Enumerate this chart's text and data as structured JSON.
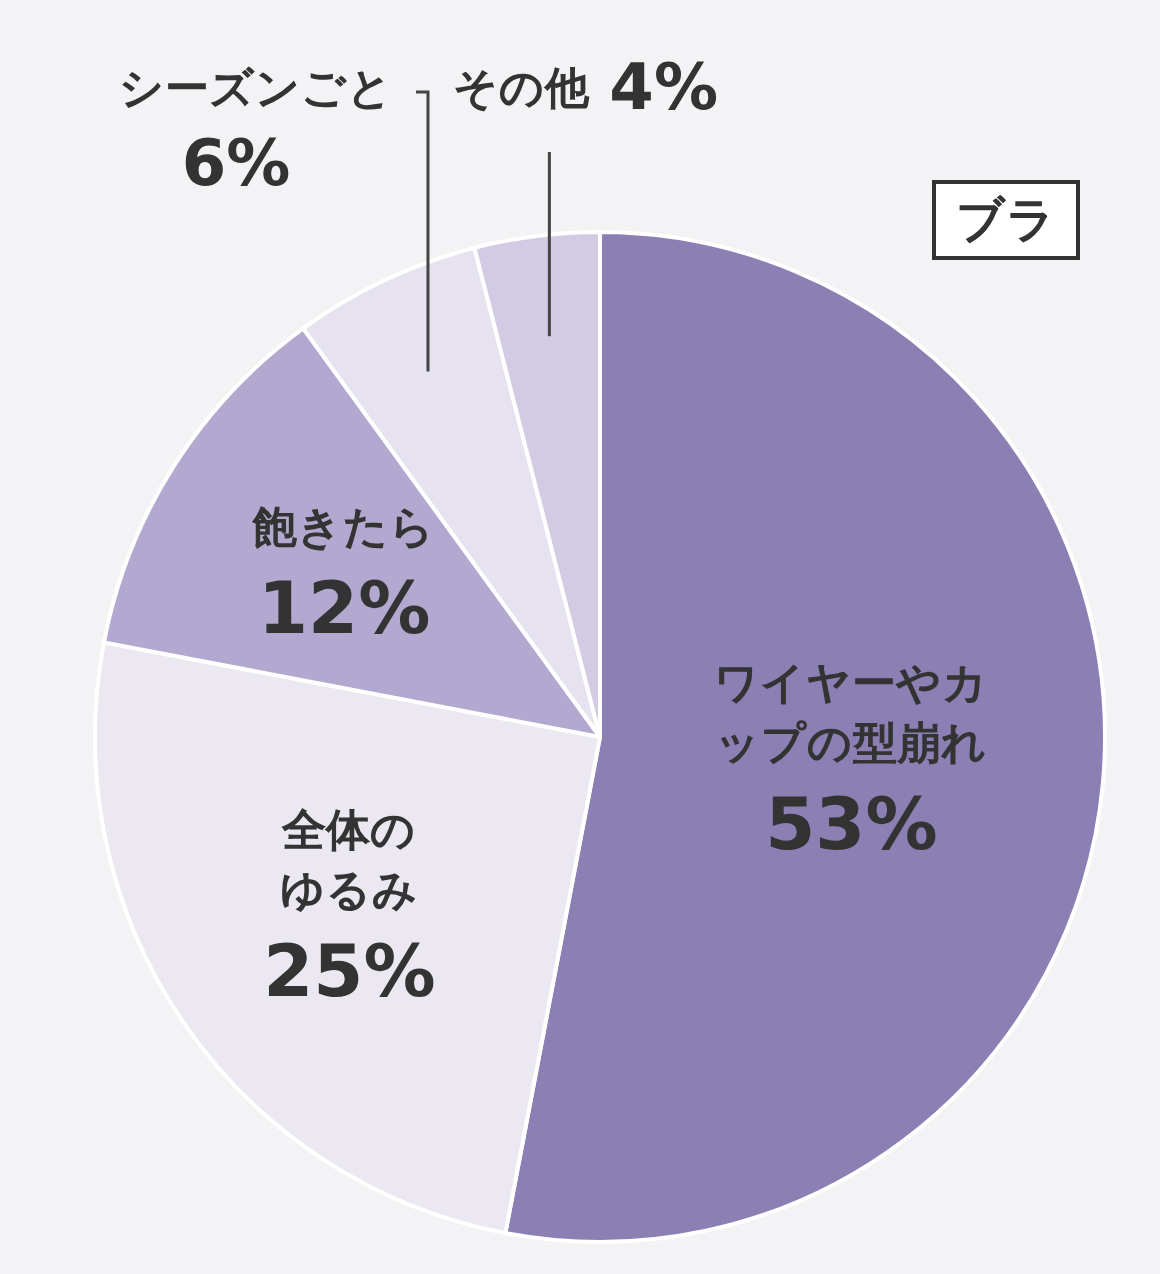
{
  "chart_data": {
    "type": "pie",
    "title": "ブラ",
    "categories": [
      "ワイヤーやカップの型崩れ",
      "全体のゆるみ",
      "飽きたら",
      "シーズンごと",
      "その他"
    ],
    "values": [
      53,
      25,
      12,
      6,
      4
    ],
    "value_labels": [
      "53%",
      "25%",
      "12%",
      "6%",
      "4%"
    ],
    "colors": [
      "#8c7fb4",
      "#ece8f2",
      "#b3a9d0",
      "#e6e2ef",
      "#d2cbe3"
    ],
    "legend": false
  }
}
